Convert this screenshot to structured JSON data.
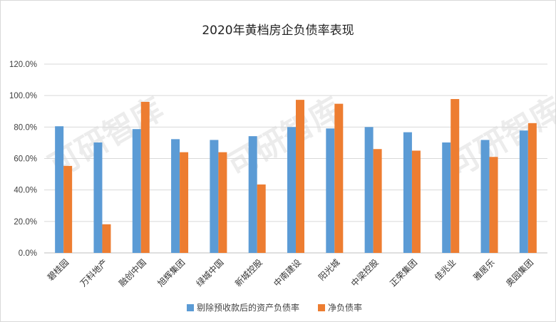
{
  "chart_data": {
    "type": "bar",
    "title": "2020年黄档房企负债率表现",
    "categories": [
      "碧桂园",
      "万科地产",
      "融创中国",
      "旭辉集团",
      "绿城中国",
      "新城控股",
      "中南建设",
      "阳光城",
      "中梁控股",
      "正荣集团",
      "佳兆业",
      "雅居乐",
      "奥园集团"
    ],
    "series": [
      {
        "name": "剔除预收款后的资产负债率",
        "color": "#5b9bd5",
        "values": [
          80.5,
          70.2,
          78.7,
          72.3,
          71.8,
          74.2,
          80.0,
          79.1,
          80.0,
          76.7,
          70.2,
          71.8,
          77.8
        ]
      },
      {
        "name": "净负债率",
        "color": "#ed7d31",
        "values": [
          55.3,
          18.2,
          96.0,
          64.0,
          64.0,
          43.5,
          97.3,
          94.8,
          66.0,
          65.0,
          97.8,
          61.0,
          82.5
        ]
      }
    ],
    "ylim": [
      0,
      120
    ],
    "yticks": [
      "0.0%",
      "20.0%",
      "40.0%",
      "60.0%",
      "80.0%",
      "100.0%",
      "120.0%"
    ],
    "grid": true,
    "legend": "bottom",
    "watermark": "可研智库"
  }
}
